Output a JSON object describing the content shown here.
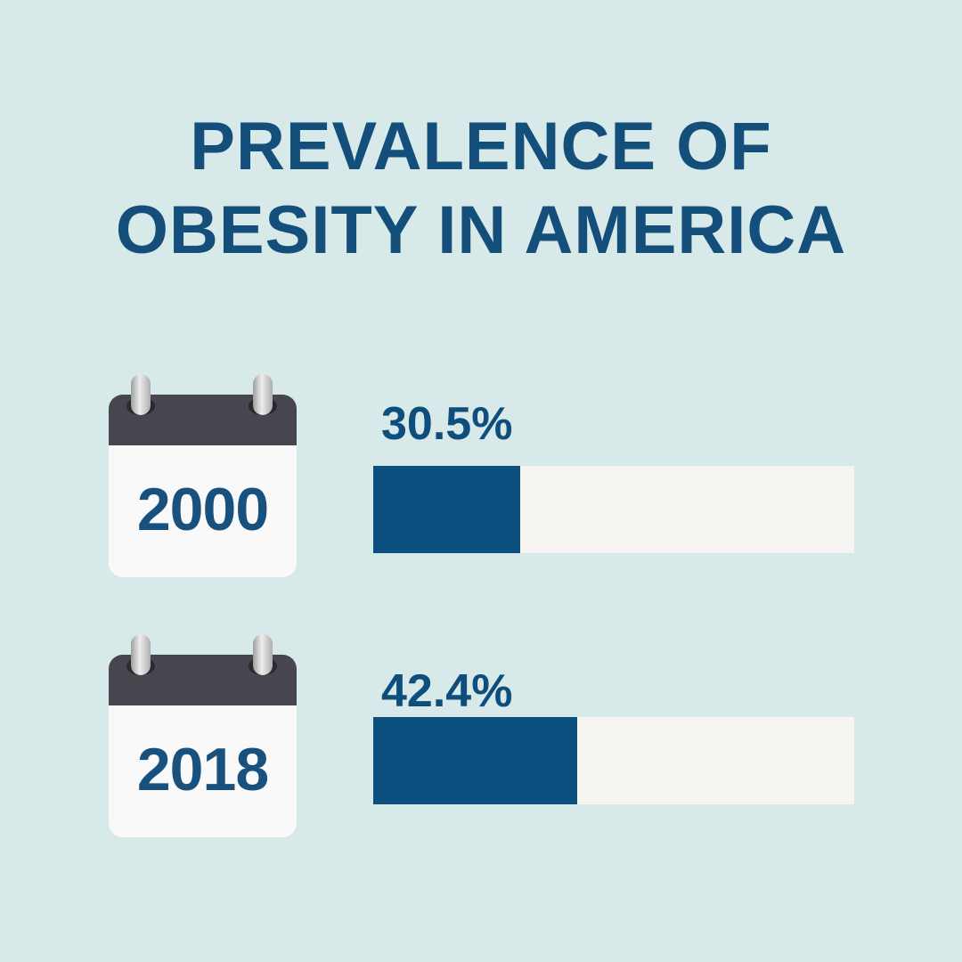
{
  "background_color": "#d7e9e8",
  "accent_color": "#0d4f7c",
  "title": {
    "line1": "PREVALENCE OF",
    "line2": "OBESITY IN AMERICA"
  },
  "rows": [
    {
      "year": "2000",
      "value": 30.5,
      "value_label": "30.5%"
    },
    {
      "year": "2018",
      "value": 42.4,
      "value_label": "42.4%"
    }
  ],
  "calendar_icon": {
    "header_color": "#47454e",
    "body_color": "#faf9f9",
    "ring_color": "#d0d0d0",
    "hole_color": "#2a2930"
  },
  "chart_data": {
    "type": "bar",
    "orientation": "horizontal",
    "title": "PREVALENCE OF OBESITY IN AMERICA",
    "categories": [
      "2000",
      "2018"
    ],
    "values": [
      30.5,
      42.4
    ],
    "value_labels": [
      "30.5%",
      "42.4%"
    ],
    "unit": "%",
    "xlim": [
      0,
      100
    ],
    "grid": false,
    "legend": false,
    "bar_fill_color": "#0a4f7d",
    "bar_track_color": "#f7f5f2",
    "label_color": "#0d4e7c"
  }
}
